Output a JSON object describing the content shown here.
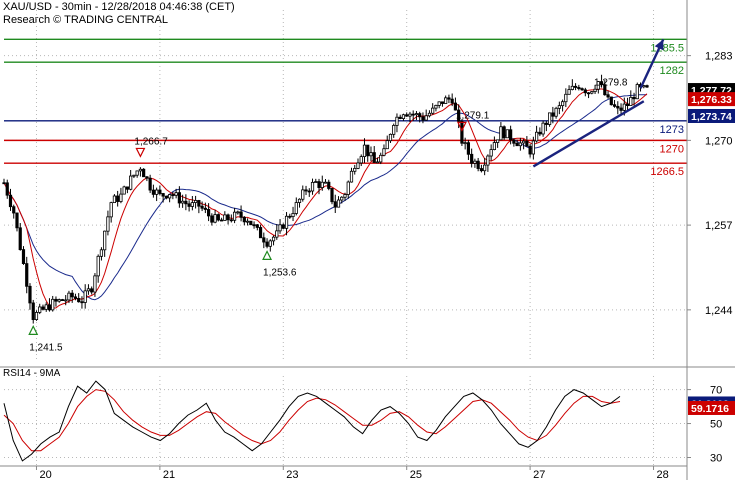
{
  "header": {
    "line1": "XAU/USD - 30min - 12/28/2018 04:46:38 (CET)",
    "line2": "Research © TRADING CENTRAL"
  },
  "rsi_title": "RSI14 - 9MA",
  "colors": {
    "candle": "#000000",
    "ma_fast": "#cc0000",
    "ma_slow": "#1a2a8c",
    "support_blue": "#0a1a7a",
    "resistance_green": "#1f8a1f",
    "level_red": "#cc0000",
    "trend_arrow": "#1a237e",
    "price_box": "#000000",
    "blue_box": "#1a3a9c",
    "red_box": "#cc0000"
  },
  "chart_data": [
    {
      "type": "line",
      "title": "XAU/USD - 30min",
      "xlabel": "",
      "ylabel": "",
      "ylim": [
        1236.0,
        1290.0
      ],
      "x_ticks": [
        "20",
        "21",
        "23",
        "25",
        "27",
        "28"
      ],
      "y_ticks": [
        1244,
        1257,
        1270,
        1283
      ],
      "y_tick_labels": [
        "1,244",
        "1,257",
        "1,270",
        "1,283"
      ],
      "price_series": [
        {
          "x": 0,
          "y": 1263.5
        },
        {
          "x": 3,
          "y": 1259.0
        },
        {
          "x": 6,
          "y": 1251.0
        },
        {
          "x": 9,
          "y": 1243.0
        },
        {
          "x": 12,
          "y": 1244.0
        },
        {
          "x": 15,
          "y": 1245.0
        },
        {
          "x": 18,
          "y": 1245.5
        },
        {
          "x": 21,
          "y": 1246.0
        },
        {
          "x": 24,
          "y": 1245.5
        },
        {
          "x": 27,
          "y": 1247.5
        },
        {
          "x": 30,
          "y": 1254.0
        },
        {
          "x": 33,
          "y": 1260.5
        },
        {
          "x": 36,
          "y": 1261.5
        },
        {
          "x": 39,
          "y": 1264.0
        },
        {
          "x": 42,
          "y": 1266.0
        },
        {
          "x": 45,
          "y": 1263.0
        },
        {
          "x": 48,
          "y": 1261.5
        },
        {
          "x": 51,
          "y": 1262.0
        },
        {
          "x": 54,
          "y": 1261.0
        },
        {
          "x": 57,
          "y": 1260.0
        },
        {
          "x": 60,
          "y": 1260.0
        },
        {
          "x": 63,
          "y": 1258.5
        },
        {
          "x": 66,
          "y": 1257.5
        },
        {
          "x": 69,
          "y": 1258.0
        },
        {
          "x": 72,
          "y": 1258.5
        },
        {
          "x": 75,
          "y": 1258.0
        },
        {
          "x": 78,
          "y": 1256.0
        },
        {
          "x": 81,
          "y": 1254.5
        },
        {
          "x": 84,
          "y": 1255.5
        },
        {
          "x": 87,
          "y": 1258.0
        },
        {
          "x": 90,
          "y": 1260.0
        },
        {
          "x": 93,
          "y": 1262.5
        },
        {
          "x": 96,
          "y": 1263.5
        },
        {
          "x": 99,
          "y": 1263.0
        },
        {
          "x": 102,
          "y": 1260.0
        },
        {
          "x": 105,
          "y": 1262.0
        },
        {
          "x": 108,
          "y": 1266.5
        },
        {
          "x": 111,
          "y": 1269.0
        },
        {
          "x": 114,
          "y": 1266.5
        },
        {
          "x": 117,
          "y": 1268.0
        },
        {
          "x": 120,
          "y": 1273.0
        },
        {
          "x": 123,
          "y": 1274.5
        },
        {
          "x": 126,
          "y": 1274.0
        },
        {
          "x": 129,
          "y": 1273.5
        },
        {
          "x": 132,
          "y": 1274.5
        },
        {
          "x": 135,
          "y": 1276.0
        },
        {
          "x": 138,
          "y": 1276.5
        },
        {
          "x": 141,
          "y": 1270.0
        },
        {
          "x": 144,
          "y": 1267.0
        },
        {
          "x": 147,
          "y": 1266.0
        },
        {
          "x": 150,
          "y": 1269.0
        },
        {
          "x": 153,
          "y": 1271.5
        },
        {
          "x": 156,
          "y": 1270.5
        },
        {
          "x": 159,
          "y": 1269.5
        },
        {
          "x": 162,
          "y": 1268.5
        },
        {
          "x": 165,
          "y": 1271.5
        },
        {
          "x": 168,
          "y": 1273.5
        },
        {
          "x": 171,
          "y": 1275.0
        },
        {
          "x": 174,
          "y": 1277.5
        },
        {
          "x": 177,
          "y": 1278.5
        },
        {
          "x": 180,
          "y": 1277.5
        },
        {
          "x": 183,
          "y": 1279.0
        },
        {
          "x": 186,
          "y": 1276.0
        },
        {
          "x": 189,
          "y": 1274.5
        },
        {
          "x": 192,
          "y": 1275.5
        },
        {
          "x": 195,
          "y": 1277.8
        },
        {
          "x": 198,
          "y": 1277.7
        }
      ],
      "annotations": [
        {
          "label": "1,241.5",
          "kind": "low",
          "x": 9
        },
        {
          "label": "1,266.7",
          "kind": "high",
          "x": 42
        },
        {
          "label": "1,253.6",
          "kind": "low",
          "x": 81
        },
        {
          "label": "1,279.1",
          "kind": "high",
          "x": 141
        },
        {
          "label": "1,279.8",
          "kind": "high_text",
          "x": 186
        }
      ],
      "levels": [
        {
          "label": "1285.5",
          "value": 1285.5,
          "color": "green"
        },
        {
          "label": "1282",
          "value": 1282.0,
          "color": "green"
        },
        {
          "label": "1273",
          "value": 1273.0,
          "color": "blue"
        },
        {
          "label": "1270",
          "value": 1270.0,
          "color": "red"
        },
        {
          "label": "1266.5",
          "value": 1266.5,
          "color": "red"
        }
      ],
      "trendline": {
        "from": {
          "x": 163,
          "y": 1266.0
        },
        "to": {
          "x": 197,
          "y": 1276.0
        }
      },
      "target_arrow": {
        "from": {
          "x": 196,
          "y": 1278.0
        },
        "to": {
          "x": 203,
          "y": 1285.5
        }
      },
      "price_boxes": [
        {
          "label": "1,277.72",
          "value": 1277.72,
          "color": "black"
        },
        {
          "label": "1,276.33",
          "value": 1276.33,
          "color": "red"
        },
        {
          "label": "1,273.74",
          "value": 1273.74,
          "color": "blue"
        }
      ]
    },
    {
      "type": "line",
      "title": "RSI14 - 9MA",
      "ylim": [
        25,
        78
      ],
      "y_ticks": [
        30,
        50,
        70
      ],
      "y_tick_labels": [
        "30",
        "50",
        "70"
      ],
      "series": [
        {
          "name": "RSI14",
          "values": [
            62,
            40,
            28,
            32,
            38,
            42,
            45,
            60,
            72,
            68,
            75,
            70,
            56,
            52,
            48,
            45,
            42,
            40,
            44,
            50,
            55,
            58,
            62,
            52,
            45,
            42,
            38,
            34,
            38,
            45,
            52,
            60,
            66,
            68,
            66,
            62,
            58,
            54,
            48,
            44,
            52,
            58,
            60,
            56,
            50,
            42,
            40,
            46,
            54,
            60,
            66,
            68,
            64,
            58,
            50,
            44,
            38,
            36,
            40,
            48,
            58,
            66,
            70,
            68,
            64,
            60,
            62,
            66
          ]
        },
        {
          "name": "9MA",
          "values": [
            55,
            50,
            40,
            34,
            34,
            38,
            42,
            50,
            60,
            66,
            70,
            69,
            64,
            57,
            52,
            48,
            45,
            43,
            43,
            46,
            50,
            54,
            57,
            56,
            51,
            47,
            43,
            40,
            38,
            40,
            45,
            52,
            58,
            63,
            65,
            64,
            61,
            57,
            53,
            49,
            49,
            52,
            56,
            57,
            54,
            49,
            45,
            44,
            48,
            53,
            58,
            63,
            64,
            62,
            57,
            52,
            46,
            42,
            40,
            43,
            49,
            56,
            62,
            66,
            66,
            63,
            62,
            63
          ]
        }
      ],
      "price_boxes": [
        {
          "label": "61.8199",
          "value": 61.82,
          "color": "blue"
        },
        {
          "label": "59.1716",
          "value": 59.17,
          "color": "red"
        }
      ]
    }
  ]
}
